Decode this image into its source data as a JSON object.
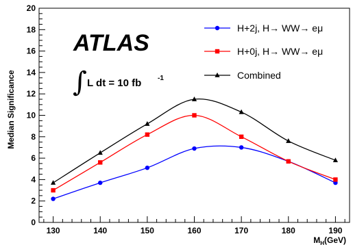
{
  "chart_data": {
    "type": "line",
    "x": [
      130,
      140,
      150,
      160,
      170,
      180,
      190
    ],
    "xlabel_main": "M",
    "xlabel_sub": "H",
    "xlabel_unit": "(GeV)",
    "ylabel": "Median Significance",
    "xlim": [
      127,
      193
    ],
    "ylim": [
      0,
      20
    ],
    "xticks": [
      130,
      140,
      150,
      160,
      170,
      180,
      190
    ],
    "yticks": [
      0,
      2,
      4,
      6,
      8,
      10,
      12,
      14,
      16,
      18,
      20
    ],
    "grid": false,
    "legend_position": "top-right",
    "series": [
      {
        "name": "H+2j, H→ WW→ eμ",
        "color": "#0000ff",
        "marker": "circle",
        "values": [
          2.2,
          3.7,
          5.1,
          6.9,
          7.0,
          5.7,
          3.7
        ]
      },
      {
        "name": "H+0j, H→ WW→ eμ",
        "color": "#ff0000",
        "marker": "square",
        "values": [
          3.0,
          5.6,
          8.2,
          10.0,
          8.0,
          5.7,
          4.0
        ]
      },
      {
        "name": "Combined",
        "color": "#000000",
        "marker": "triangle",
        "values": [
          3.7,
          6.5,
          9.2,
          11.5,
          10.3,
          7.6,
          5.8
        ]
      }
    ],
    "annotations": {
      "brand": "ATLAS",
      "lumi_text": "L dt = 10 fb",
      "lumi_exp": "-1",
      "integral_symbol": "∫"
    }
  }
}
